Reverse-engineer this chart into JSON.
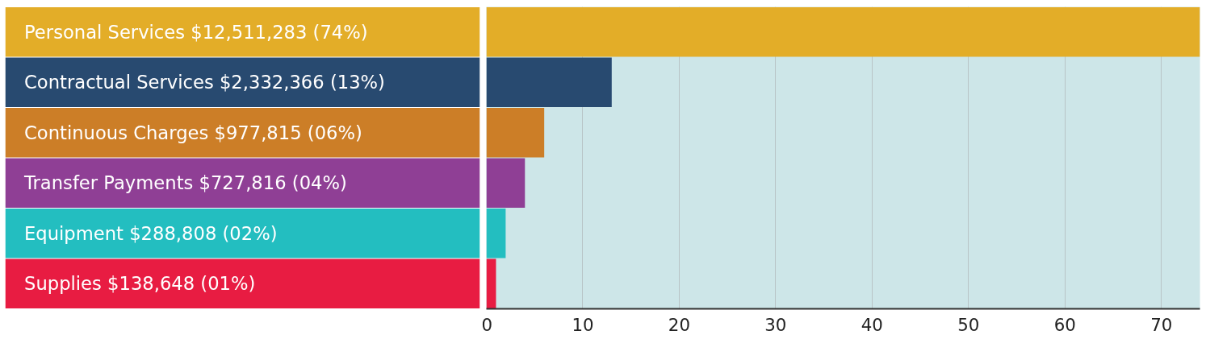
{
  "chart_data": {
    "type": "bar",
    "orientation": "horizontal",
    "categories": [
      "Personal Services $12,511,283 (74%)",
      "Contractual Services $2,332,366 (13%)",
      "Continuous Charges $977,815 (06%)",
      "Transfer Payments $727,816 (04%)",
      "Equipment $288,808 (02%)",
      "Supplies $138,648 (01%)"
    ],
    "values": [
      74,
      13,
      6,
      4,
      2,
      1
    ],
    "colors": [
      "#e3ad28",
      "#284a70",
      "#cc7e27",
      "#8f3f95",
      "#23bec0",
      "#e81c42"
    ],
    "xlim": [
      0,
      74
    ],
    "xticks": [
      0,
      10,
      20,
      30,
      40,
      50,
      60,
      70
    ],
    "grid": "x"
  }
}
